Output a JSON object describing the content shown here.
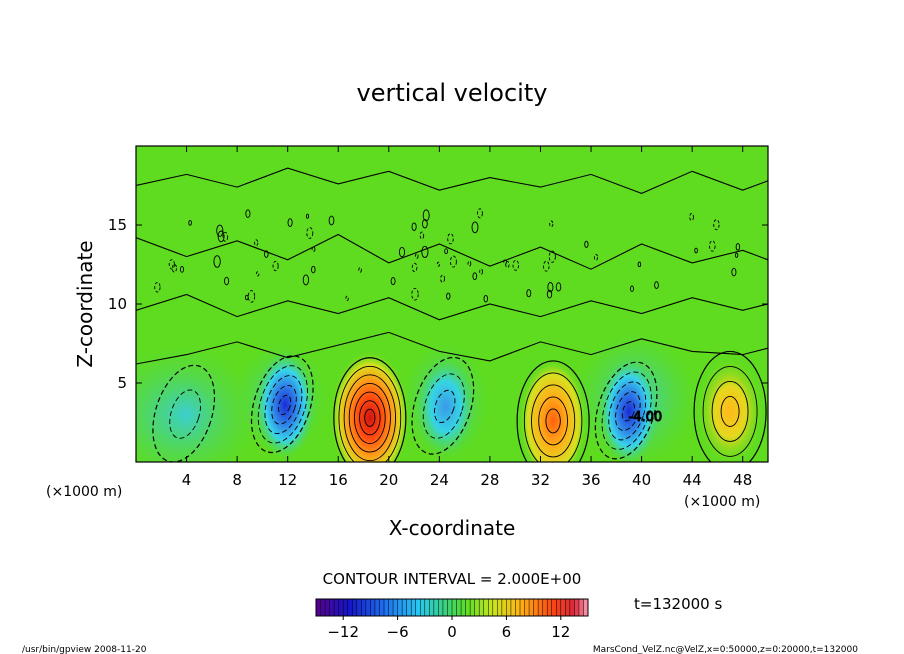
{
  "chart_data": {
    "type": "heatmap",
    "title": "vertical velocity",
    "xlabel": "X-coordinate",
    "ylabel": "Z-coordinate",
    "x_unit_left": "(×1000 m)",
    "x_unit_right": "(×1000 m)",
    "xlim": [
      0,
      50
    ],
    "ylim": [
      0,
      20
    ],
    "x_ticks": [
      4,
      8,
      12,
      16,
      20,
      24,
      28,
      32,
      36,
      40,
      44,
      48
    ],
    "y_ticks": [
      5,
      10,
      15
    ],
    "contour_interval_text": "CONTOUR INTERVAL = 2.000E+00",
    "contour_label": "-4.00",
    "time_label": "t=132000 s",
    "colorbar": {
      "min": -15,
      "max": 15,
      "ticks": [
        -12,
        -6,
        0,
        6,
        12
      ]
    },
    "extrema": [
      {
        "x": 18.5,
        "z": 2.8,
        "value": 14
      },
      {
        "x": 33.0,
        "z": 2.6,
        "value": 11
      },
      {
        "x": 47.0,
        "z": 3.2,
        "value": 8
      },
      {
        "x": 11.8,
        "z": 3.6,
        "value": -11
      },
      {
        "x": 39.0,
        "z": 3.2,
        "value": -11
      },
      {
        "x": 24.5,
        "z": 3.5,
        "value": -7
      },
      {
        "x": 4.0,
        "z": 3.0,
        "value": -5
      }
    ]
  },
  "footer": {
    "left": "/usr/bin/gpview  2008-11-20",
    "right": "MarsCond_VelZ.nc@VelZ,x=0:50000,z=0:20000,t=132000"
  }
}
